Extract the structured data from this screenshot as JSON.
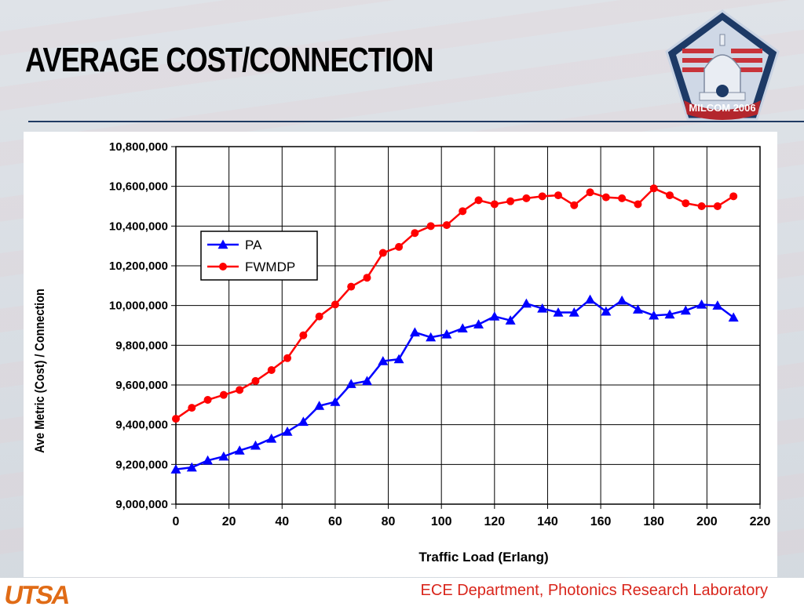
{
  "slide": {
    "title": "AVERAGE COST/CONNECTION",
    "footer": "ECE Department, Photonics Research Laboratory",
    "institution_logo": "UTSA",
    "badge_text": "MILCOM 2006",
    "accent_color": "#1f3b63",
    "footer_color": "#d9261c"
  },
  "chart_data": {
    "type": "line",
    "title": "",
    "xlabel": "Traffic Load (Erlang)",
    "ylabel": "Ave Metric (Cost) / Connection",
    "xlim": [
      0,
      220
    ],
    "ylim": [
      9000000,
      10800000
    ],
    "x_ticks": [
      0,
      20,
      40,
      60,
      80,
      100,
      120,
      140,
      160,
      180,
      200,
      220
    ],
    "y_ticks": [
      9000000,
      9200000,
      9400000,
      9600000,
      9800000,
      10000000,
      10200000,
      10400000,
      10600000,
      10800000
    ],
    "x_tick_labels": [
      "0",
      "20",
      "40",
      "60",
      "80",
      "100",
      "120",
      "140",
      "160",
      "180",
      "200",
      "220"
    ],
    "y_tick_labels": [
      "9,000,000",
      "9,200,000",
      "9,400,000",
      "9,600,000",
      "9,800,000",
      "10,000,000",
      "10,200,000",
      "10,400,000",
      "10,600,000",
      "10,800,000"
    ],
    "grid": true,
    "legend_position": "upper-left",
    "x": [
      0,
      6,
      12,
      18,
      24,
      30,
      36,
      42,
      48,
      54,
      60,
      66,
      72,
      78,
      84,
      90,
      96,
      102,
      108,
      114,
      120,
      126,
      132,
      138,
      144,
      150,
      156,
      162,
      168,
      174,
      180,
      186,
      192,
      198,
      204,
      210
    ],
    "series": [
      {
        "name": "PA",
        "color": "#0000ff",
        "marker": "triangle",
        "values": [
          9175000,
          9185000,
          9220000,
          9240000,
          9270000,
          9295000,
          9330000,
          9365000,
          9415000,
          9495000,
          9515000,
          9605000,
          9620000,
          9720000,
          9730000,
          9865000,
          9840000,
          9855000,
          9885000,
          9905000,
          9945000,
          9925000,
          10010000,
          9985000,
          9965000,
          9965000,
          10030000,
          9970000,
          10025000,
          9980000,
          9950000,
          9955000,
          9975000,
          10005000,
          10000000,
          9940000
        ]
      },
      {
        "name": "FWMDP",
        "color": "#ff0000",
        "marker": "circle",
        "values": [
          9430000,
          9485000,
          9525000,
          9550000,
          9575000,
          9620000,
          9675000,
          9735000,
          9850000,
          9945000,
          10005000,
          10095000,
          10140000,
          10265000,
          10295000,
          10365000,
          10400000,
          10405000,
          10475000,
          10530000,
          10510000,
          10525000,
          10540000,
          10550000,
          10555000,
          10505000,
          10570000,
          10545000,
          10540000,
          10510000,
          10590000,
          10555000,
          10515000,
          10500000,
          10500000,
          10550000
        ]
      }
    ]
  }
}
